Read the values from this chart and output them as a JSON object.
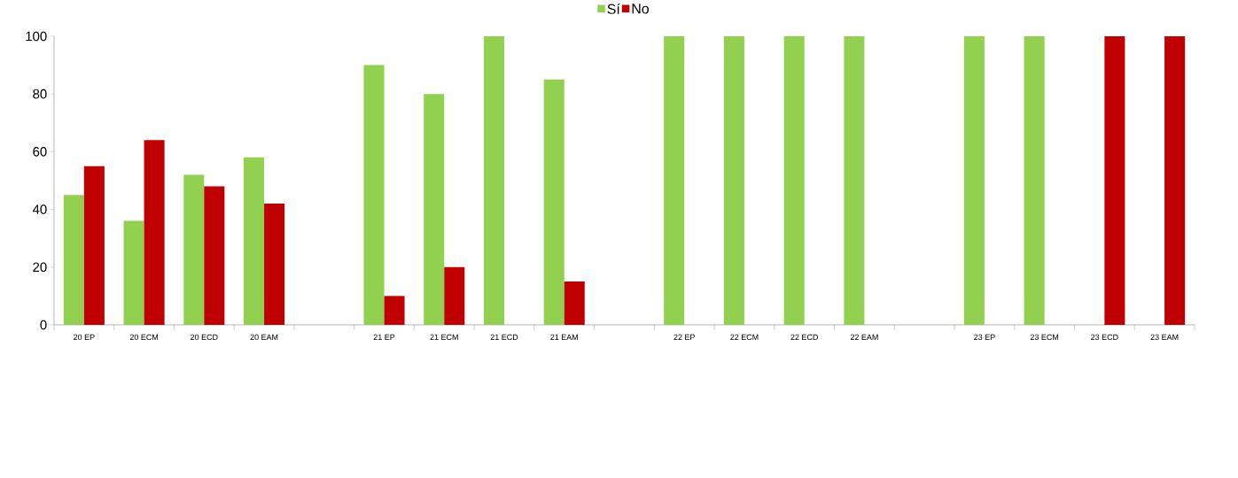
{
  "chart_data": {
    "type": "bar",
    "categories": [
      "20 EP",
      "20 ECM",
      "20 ECD",
      "20 EAM",
      null,
      "21 EP",
      "21 ECM",
      "21 ECD",
      "21 EAM",
      null,
      "22 EP",
      "22 ECM",
      "22 ECD",
      "22 EAM",
      null,
      "23 EP",
      "23 ECM",
      "23 ECD",
      "23 EAM"
    ],
    "series": [
      {
        "name": "Sí",
        "color": "#92d050",
        "values": [
          45,
          36,
          52,
          58,
          null,
          90,
          80,
          100,
          85,
          null,
          100,
          100,
          100,
          100,
          null,
          100,
          100,
          null,
          null
        ]
      },
      {
        "name": "No",
        "color": "#c00000",
        "values": [
          55,
          64,
          48,
          42,
          null,
          10,
          20,
          null,
          15,
          null,
          null,
          null,
          null,
          null,
          null,
          null,
          null,
          100,
          100
        ]
      }
    ],
    "ylim": [
      0,
      100
    ],
    "yticks": [
      0,
      20,
      40,
      60,
      80,
      100
    ],
    "grid": false,
    "legend": "top"
  }
}
